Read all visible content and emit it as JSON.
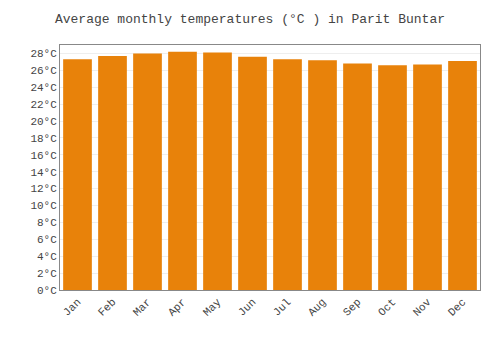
{
  "chart_data": {
    "type": "bar",
    "title": "Average monthly temperatures (°C ) in Parit Buntar",
    "categories": [
      "Jan",
      "Feb",
      "Mar",
      "Apr",
      "May",
      "Jun",
      "Jul",
      "Aug",
      "Sep",
      "Oct",
      "Nov",
      "Dec"
    ],
    "values": [
      27.3,
      27.7,
      28.0,
      28.2,
      28.1,
      27.6,
      27.3,
      27.2,
      26.8,
      26.6,
      26.7,
      27.1
    ],
    "color": "#E8820A",
    "ylim": [
      0,
      29
    ],
    "yticks": [
      {
        "value": 0,
        "label": "0°C"
      },
      {
        "value": 2,
        "label": "2°C"
      },
      {
        "value": 4,
        "label": "4°C"
      },
      {
        "value": 6,
        "label": "6°C"
      },
      {
        "value": 8,
        "label": "8°C"
      },
      {
        "value": 10,
        "label": "10°C"
      },
      {
        "value": 12,
        "label": "12°C"
      },
      {
        "value": 14,
        "label": "14°C"
      },
      {
        "value": 16,
        "label": "16°C"
      },
      {
        "value": 18,
        "label": "18°C"
      },
      {
        "value": 20,
        "label": "20°C"
      },
      {
        "value": 22,
        "label": "22°C"
      },
      {
        "value": 24,
        "label": "24°C"
      },
      {
        "value": 26,
        "label": "26°C"
      },
      {
        "value": 28,
        "label": "28°C"
      }
    ],
    "grid": true
  }
}
